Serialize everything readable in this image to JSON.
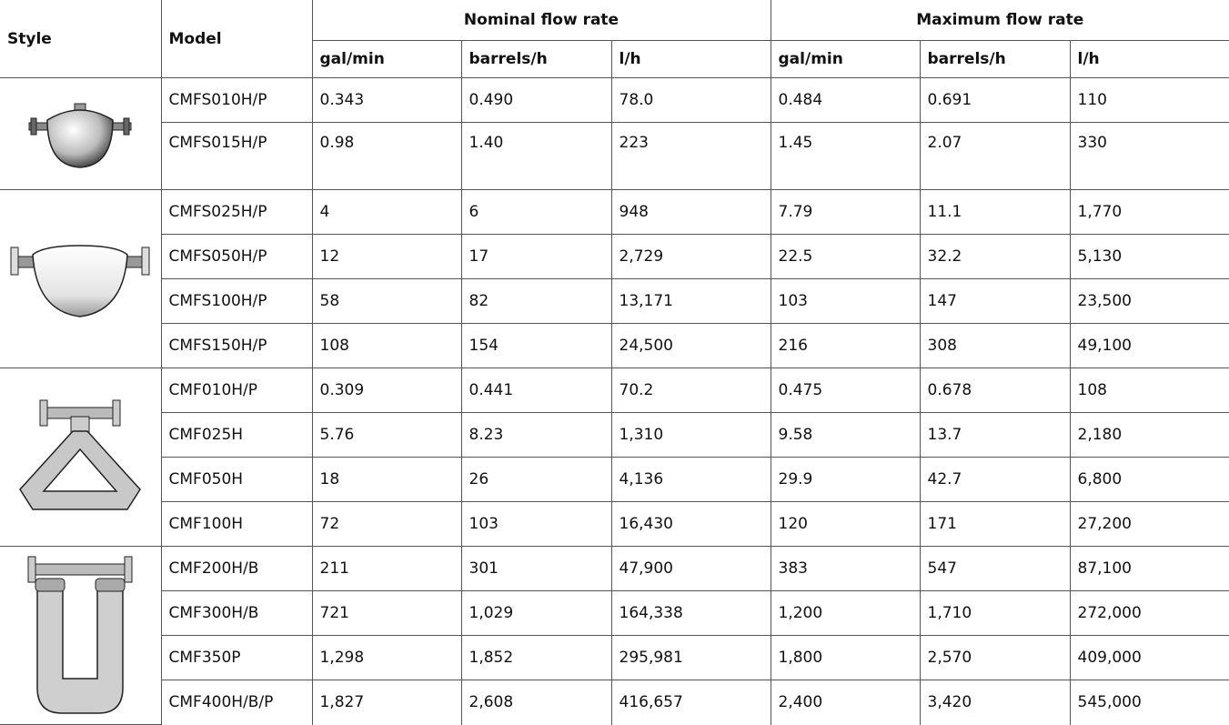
{
  "table": {
    "header": {
      "style": "Style",
      "model": "Model",
      "groups": [
        "Nominal flow rate",
        "Maximum flow rate"
      ],
      "units": [
        "gal/min",
        "barrels/h",
        "l/h",
        "gal/min",
        "barrels/h",
        "l/h"
      ]
    },
    "groups": [
      {
        "rows": [
          [
            "CMFS010H/P",
            "0.343",
            "0.490",
            "78.0",
            "0.484",
            "0.691",
            "110"
          ],
          [
            "CMFS015H/P",
            "0.98",
            "1.40",
            "223",
            "1.45",
            "2.07",
            "330"
          ]
        ]
      },
      {
        "rows": [
          [
            "CMFS025H/P",
            "4",
            "6",
            "948",
            "7.79",
            "11.1",
            "1,770"
          ],
          [
            "CMFS050H/P",
            "12",
            "17",
            "2,729",
            "22.5",
            "32.2",
            "5,130"
          ],
          [
            "CMFS100H/P",
            "58",
            "82",
            "13,171",
            "103",
            "147",
            "23,500"
          ],
          [
            "CMFS150H/P",
            "108",
            "154",
            "24,500",
            "216",
            "308",
            "49,100"
          ]
        ]
      },
      {
        "rows": [
          [
            "CMF010H/P",
            "0.309",
            "0.441",
            "70.2",
            "0.475",
            "0.678",
            "108"
          ],
          [
            "CMF025H",
            "5.76",
            "8.23",
            "1,310",
            "9.58",
            "13.7",
            "2,180"
          ],
          [
            "CMF050H",
            "18",
            "26",
            "4,136",
            "29.9",
            "42.7",
            "6,800"
          ],
          [
            "CMF100H",
            "72",
            "103",
            "16,430",
            "120",
            "171",
            "27,200"
          ]
        ]
      },
      {
        "rows": [
          [
            "CMF200H/B",
            "211",
            "301",
            "47,900",
            "383",
            "547",
            "87,100"
          ],
          [
            "CMF300H/B",
            "721",
            "1,029",
            "164,338",
            "1,200",
            "1,710",
            "272,000"
          ],
          [
            "CMF350P",
            "1,298",
            "1,852",
            "295,981",
            "1,800",
            "2,570",
            "409,000"
          ],
          [
            "CMF400H/B/P",
            "1,827",
            "2,608",
            "416,657",
            "2,400",
            "3,420",
            "545,000"
          ]
        ]
      }
    ]
  }
}
